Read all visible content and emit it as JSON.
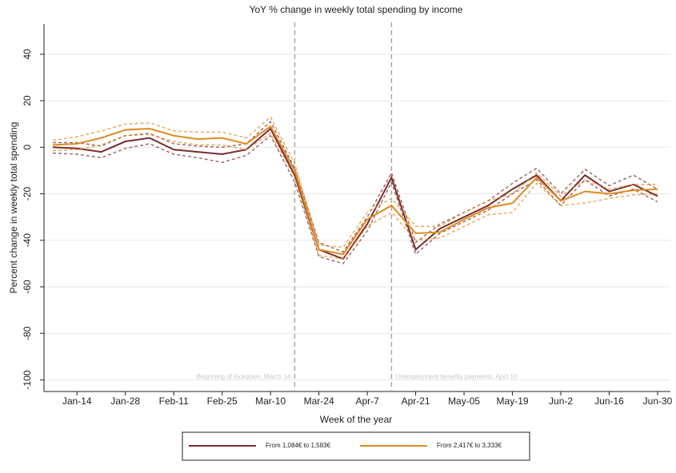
{
  "chart_data": {
    "type": "line",
    "title": "YoY % change in weekly total spending by income",
    "x_label": "Week of the year",
    "y_label": "Percent change in weekly total spending",
    "categories": [
      null,
      "Jan-14",
      null,
      "Jan-28",
      null,
      "Feb-11",
      null,
      "Feb-25",
      null,
      "Mar-10",
      null,
      "Mar-24",
      null,
      "Apr-7",
      null,
      "Apr-21",
      null,
      "May-05",
      null,
      "May-19",
      null,
      "Jun-2",
      null,
      "Jun-16",
      null,
      "Jun-30"
    ],
    "series": [
      {
        "name": "From 1,084€ to 1,583€",
        "color": "#7b2c2c",
        "values": [
          0,
          -0.5,
          -2,
          2.5,
          4,
          -1,
          -2,
          -3,
          -1,
          8,
          -12,
          -44,
          -48,
          -33,
          -13,
          -44,
          -35,
          -30,
          -25,
          -18,
          -12,
          -23,
          -12,
          -19,
          -16,
          -21
        ],
        "lower": [
          -2.5,
          -3,
          -4.5,
          -0.5,
          1.5,
          -3,
          -4.5,
          -6.5,
          -3.5,
          5,
          -15,
          -47,
          -50,
          -36,
          -15,
          -46,
          -37,
          -32,
          -27,
          -20,
          -14,
          -25,
          -14,
          -21,
          -18,
          -23.5
        ],
        "upper": [
          2,
          2,
          0.5,
          5,
          6,
          1.5,
          0.5,
          0,
          1.5,
          11,
          -9,
          -41,
          -45,
          -30,
          -11,
          -41,
          -33,
          -28,
          -23,
          -15.5,
          -9,
          -20,
          -9.5,
          -16.5,
          -12,
          -18
        ]
      },
      {
        "name": "From 2,417€ to 3,333€",
        "color": "#e08a1e",
        "values": [
          1,
          1.5,
          4,
          7.5,
          8,
          5,
          3.5,
          4,
          1.5,
          9,
          -10,
          -44,
          -46,
          -31,
          -25,
          -37,
          -36.5,
          -31,
          -26,
          -24,
          -13,
          -23,
          -19,
          -20,
          -18.5,
          -18
        ],
        "lower": [
          -1.5,
          -1,
          1,
          5,
          5.5,
          2.5,
          1,
          1,
          -1,
          6,
          -13,
          -46.5,
          -48,
          -34,
          -28,
          -40,
          -39,
          -34,
          -29,
          -28,
          -15.5,
          -25,
          -24,
          -22,
          -20.5,
          -20
        ],
        "upper": [
          3,
          4.5,
          7,
          10,
          10.5,
          7,
          6.5,
          6.5,
          4,
          13,
          -7,
          -42,
          -43,
          -28,
          -22,
          -34,
          -34,
          -28,
          -23,
          -20,
          -11,
          -21,
          -14,
          -18,
          -16,
          -16
        ]
      }
    ],
    "ylim": [
      -105,
      53
    ],
    "yticks": [
      -100,
      -80,
      -60,
      -40,
      -20,
      0,
      20,
      40
    ],
    "grid": true,
    "vlines": [
      {
        "category": 10,
        "label": "Beginning of lockdown, March 14"
      },
      {
        "category": 14,
        "label": "Unemployment benefits payments, April 10"
      }
    ],
    "legend": "bottom"
  }
}
